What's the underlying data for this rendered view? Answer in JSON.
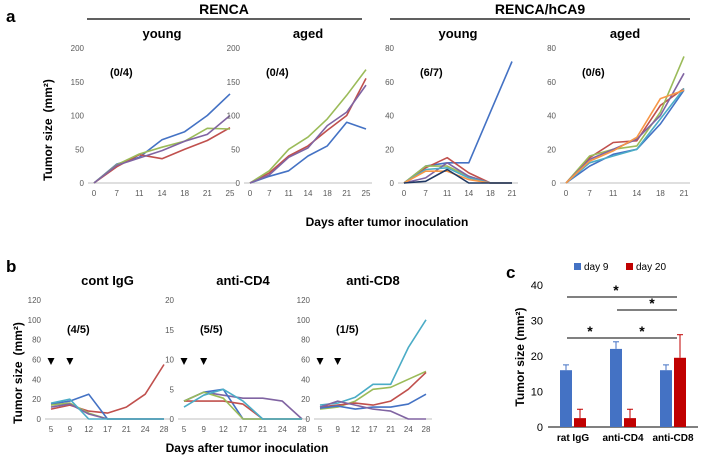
{
  "figure": {
    "label_a": "a",
    "label_b": "b",
    "label_c": "c",
    "group_renca": "RENCA",
    "group_renca_hca9": "RENCA/hCA9",
    "ylabel_a": "Tumor size",
    "ylabel_unit": "(mm²)",
    "xlabel_a": "Days after tumor inoculation",
    "ylabel_b": "Tumor size",
    "xlabel_b": "Days after tumor inoculation",
    "ylabel_c": "Tumor size (mm²)"
  },
  "chart_data": [
    {
      "id": "a1",
      "type": "line",
      "title": "young",
      "ratio": "(0/4)",
      "categories": [
        "0",
        "7",
        "11",
        "14",
        "18",
        "21",
        "25"
      ],
      "ylim": [
        0,
        200
      ],
      "yticks": [
        0,
        50,
        100,
        150,
        200
      ],
      "series": [
        {
          "color": "#4472C4",
          "values": [
            0,
            28,
            38,
            64,
            76,
            100,
            132
          ]
        },
        {
          "color": "#C0504D",
          "values": [
            0,
            24,
            42,
            36,
            50,
            63,
            82
          ]
        },
        {
          "color": "#9BBB59",
          "values": [
            0,
            27,
            43,
            53,
            62,
            81,
            80
          ]
        },
        {
          "color": "#8064A2",
          "values": [
            0,
            26,
            37,
            48,
            62,
            72,
            100
          ]
        }
      ]
    },
    {
      "id": "a2",
      "type": "line",
      "title": "aged",
      "ratio": "(0/4)",
      "categories": [
        "0",
        "7",
        "11",
        "14",
        "18",
        "21",
        "25"
      ],
      "ylim": [
        0,
        200
      ],
      "yticks": [
        0,
        50,
        100,
        150,
        200
      ],
      "series": [
        {
          "color": "#4472C4",
          "values": [
            0,
            10,
            18,
            40,
            55,
            90,
            80
          ]
        },
        {
          "color": "#C0504D",
          "values": [
            0,
            15,
            40,
            55,
            78,
            100,
            155
          ]
        },
        {
          "color": "#9BBB59",
          "values": [
            0,
            18,
            50,
            68,
            95,
            130,
            168
          ]
        },
        {
          "color": "#8064A2",
          "values": [
            0,
            12,
            38,
            52,
            85,
            105,
            145
          ]
        }
      ]
    },
    {
      "id": "a3",
      "type": "line",
      "title": "young",
      "ratio": "(6/7)",
      "categories": [
        "0",
        "7",
        "11",
        "14",
        "18",
        "21"
      ],
      "ylim": [
        0,
        80
      ],
      "yticks": [
        0,
        20,
        40,
        60,
        80
      ],
      "series": [
        {
          "color": "#4472C4",
          "values": [
            0,
            10,
            12,
            12,
            42,
            72
          ]
        },
        {
          "color": "#C0504D",
          "values": [
            0,
            9,
            15,
            6,
            0,
            0
          ]
        },
        {
          "color": "#9BBB59",
          "values": [
            0,
            10,
            10,
            4,
            0,
            0
          ]
        },
        {
          "color": "#8064A2",
          "values": [
            0,
            3,
            12,
            4,
            0,
            0
          ]
        },
        {
          "color": "#4BACC6",
          "values": [
            0,
            8,
            9,
            3,
            0,
            0
          ]
        },
        {
          "color": "#F79646",
          "values": [
            0,
            7,
            7,
            2,
            0,
            0
          ]
        },
        {
          "color": "#1F3864",
          "values": [
            0,
            1,
            8,
            0,
            0,
            0
          ]
        }
      ]
    },
    {
      "id": "a4",
      "type": "line",
      "title": "aged",
      "ratio": "(0/6)",
      "categories": [
        "0",
        "7",
        "11",
        "14",
        "18",
        "21"
      ],
      "ylim": [
        0,
        80
      ],
      "yticks": [
        0,
        20,
        40,
        60,
        80
      ],
      "series": [
        {
          "color": "#4472C4",
          "values": [
            0,
            10,
            17,
            20,
            35,
            55
          ]
        },
        {
          "color": "#C0504D",
          "values": [
            0,
            15,
            24,
            25,
            46,
            56
          ]
        },
        {
          "color": "#9BBB59",
          "values": [
            0,
            16,
            20,
            22,
            42,
            75
          ]
        },
        {
          "color": "#8064A2",
          "values": [
            0,
            14,
            20,
            26,
            40,
            65
          ]
        },
        {
          "color": "#4BACC6",
          "values": [
            0,
            12,
            16,
            20,
            38,
            56
          ]
        },
        {
          "color": "#F79646",
          "values": [
            0,
            13,
            19,
            27,
            50,
            55
          ]
        }
      ]
    },
    {
      "id": "b1",
      "type": "line",
      "title": "cont IgG",
      "ratio": "(4/5)",
      "categories": [
        "5",
        "9",
        "12",
        "17",
        "21",
        "24",
        "28"
      ],
      "ylim": [
        0,
        120
      ],
      "yticks": [
        0,
        20,
        40,
        60,
        80,
        100,
        120
      ],
      "series": [
        {
          "color": "#C0504D",
          "values": [
            10,
            14,
            8,
            6,
            12,
            25,
            55
          ]
        },
        {
          "color": "#4472C4",
          "values": [
            15,
            18,
            25,
            0,
            0,
            0,
            0
          ]
        },
        {
          "color": "#9BBB59",
          "values": [
            14,
            16,
            6,
            0,
            0,
            0,
            0
          ]
        },
        {
          "color": "#8064A2",
          "values": [
            12,
            15,
            5,
            0,
            0,
            0,
            0
          ]
        },
        {
          "color": "#4BACC6",
          "values": [
            16,
            20,
            0,
            0,
            0,
            0,
            0
          ]
        }
      ]
    },
    {
      "id": "b2",
      "type": "line",
      "title": "anti-CD4",
      "ratio": "(5/5)",
      "categories": [
        "5",
        "9",
        "12",
        "17",
        "21",
        "24",
        "28"
      ],
      "ylim": [
        0,
        20
      ],
      "yticks": [
        0,
        5,
        10,
        15,
        20
      ],
      "series": [
        {
          "color": "#8064A2",
          "values": [
            3,
            4.5,
            4,
            3.5,
            3.5,
            3,
            0
          ]
        },
        {
          "color": "#4472C4",
          "values": [
            3,
            4.5,
            5,
            0,
            0,
            0,
            0
          ]
        },
        {
          "color": "#C0504D",
          "values": [
            3,
            3,
            3,
            2.5,
            0,
            0,
            0
          ]
        },
        {
          "color": "#9BBB59",
          "values": [
            3,
            4.5,
            3.5,
            0,
            0,
            0,
            0
          ]
        },
        {
          "color": "#4BACC6",
          "values": [
            2,
            4,
            5,
            3,
            0,
            0,
            0
          ]
        }
      ]
    },
    {
      "id": "b3",
      "type": "line",
      "title": "anti-CD8",
      "ratio": "(1/5)",
      "categories": [
        "5",
        "9",
        "12",
        "17",
        "21",
        "24",
        "28"
      ],
      "ylim": [
        0,
        120
      ],
      "yticks": [
        0,
        20,
        40,
        60,
        80,
        100,
        120
      ],
      "series": [
        {
          "color": "#4BACC6",
          "values": [
            14,
            16,
            22,
            35,
            35,
            72,
            100
          ]
        },
        {
          "color": "#9BBB59",
          "values": [
            10,
            12,
            18,
            30,
            32,
            40,
            48
          ]
        },
        {
          "color": "#C0504D",
          "values": [
            12,
            14,
            16,
            14,
            18,
            30,
            47
          ]
        },
        {
          "color": "#4472C4",
          "values": [
            11,
            13,
            10,
            12,
            12,
            15,
            25
          ]
        },
        {
          "color": "#8064A2",
          "values": [
            12,
            18,
            14,
            10,
            8,
            0,
            0
          ]
        }
      ]
    },
    {
      "id": "c",
      "type": "bar",
      "categories": [
        "rat IgG",
        "anti-CD4",
        "anti-CD8"
      ],
      "ylim": [
        0,
        40
      ],
      "yticks": [
        0,
        10,
        20,
        30,
        40
      ],
      "ylabel": "Tumor size (mm²)",
      "series": [
        {
          "name": "day 9",
          "color": "#4472C4",
          "values": [
            16,
            22,
            16
          ],
          "errors": [
            1.5,
            2,
            1.5
          ]
        },
        {
          "name": "day 20",
          "color": "#C00000",
          "values": [
            2.5,
            2.5,
            19.5
          ],
          "errors": [
            2.5,
            2.5,
            6.5
          ]
        }
      ],
      "significance": [
        "*",
        "*",
        "*",
        "*"
      ]
    }
  ]
}
